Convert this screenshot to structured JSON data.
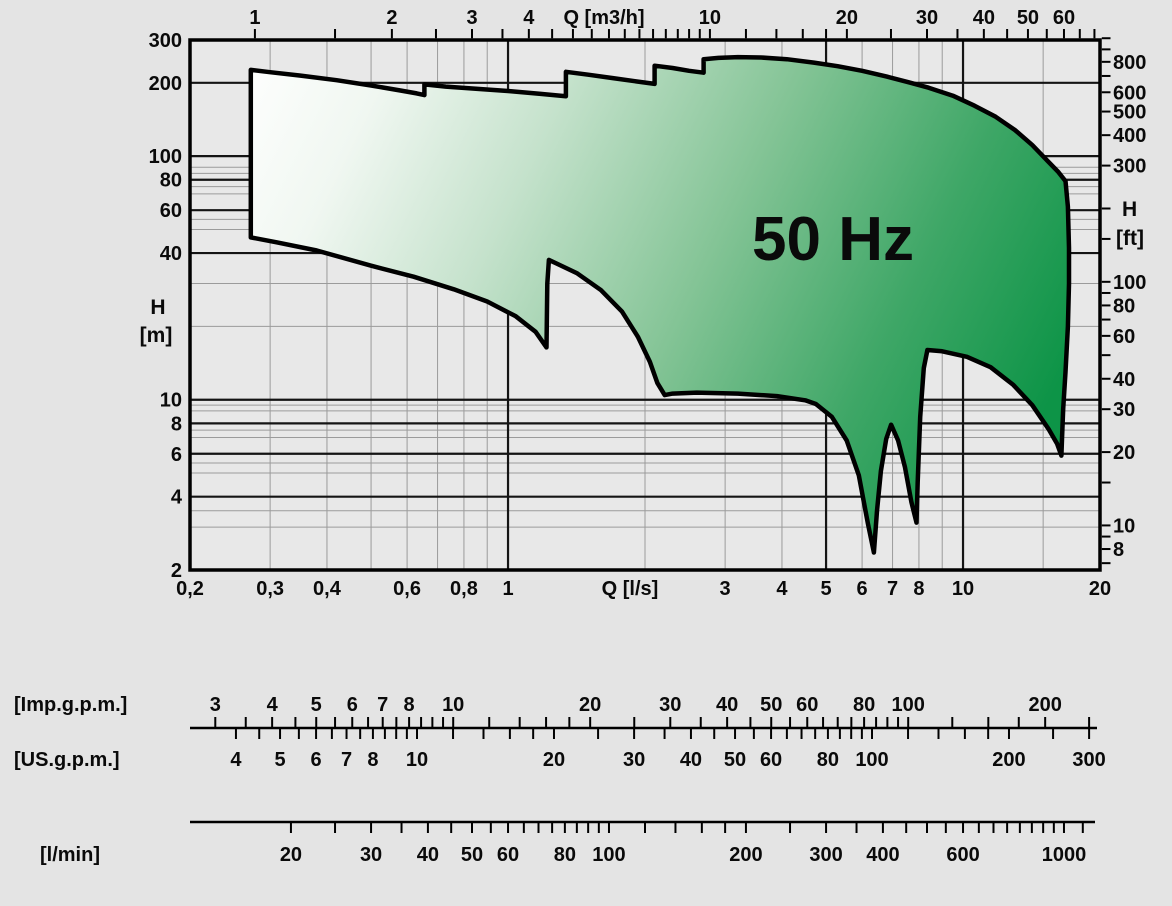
{
  "chart_data": {
    "type": "area",
    "title": "50 Hz",
    "description": "Pump family operating envelope, head H versus flow Q, log-log scales",
    "x_scale": "log",
    "y_scale": "log",
    "x_range_ls": [
      0.2,
      20
    ],
    "y_range_m": [
      2,
      300
    ],
    "colors": {
      "page_bg": "#e4e4e4",
      "plot_bg": "#e8e8e8",
      "grid_thin": "#9b9b9b",
      "grid_dark": "#141414",
      "frame": "#000000",
      "text": "#0a0a0a",
      "envelope_outline": "#000000"
    },
    "axes": {
      "top": {
        "title": "Q [m3/h]",
        "ls_per_unit": 0.2777778,
        "labeled": [
          {
            "v": 1,
            "t": "1"
          },
          {
            "v": 2,
            "t": "2"
          },
          {
            "v": 3,
            "t": "3"
          },
          {
            "v": 4,
            "t": "4"
          },
          {
            "v": 10,
            "t": "10"
          },
          {
            "v": 20,
            "t": "20"
          },
          {
            "v": 30,
            "t": "30"
          },
          {
            "v": 40,
            "t": "40"
          },
          {
            "v": 50,
            "t": "50"
          },
          {
            "v": 60,
            "t": "60"
          }
        ],
        "minor": [
          1.5,
          2.5,
          3.5,
          4.5,
          5,
          5.5,
          6,
          6.5,
          7,
          7.5,
          8,
          8.5,
          9,
          9.5,
          12,
          14,
          16,
          18,
          25,
          35,
          45,
          55,
          65,
          70
        ]
      },
      "bottom": {
        "title": "Q [l/s]",
        "labeled": [
          {
            "v": 0.2,
            "t": "0,2"
          },
          {
            "v": 0.3,
            "t": "0,3"
          },
          {
            "v": 0.4,
            "t": "0,4"
          },
          {
            "v": 0.6,
            "t": "0,6"
          },
          {
            "v": 0.8,
            "t": "0,8"
          },
          {
            "v": 1,
            "t": "1"
          },
          {
            "v": 3,
            "t": "3"
          },
          {
            "v": 4,
            "t": "4"
          },
          {
            "v": 5,
            "t": "5"
          },
          {
            "v": 6,
            "t": "6"
          },
          {
            "v": 7,
            "t": "7"
          },
          {
            "v": 8,
            "t": "8"
          },
          {
            "v": 10,
            "t": "10"
          },
          {
            "v": 20,
            "t": "20"
          }
        ]
      },
      "left": {
        "title_lines": [
          "H",
          "[m]"
        ],
        "labeled": [
          {
            "v": 300,
            "t": "300"
          },
          {
            "v": 200,
            "t": "200"
          },
          {
            "v": 100,
            "t": "100"
          },
          {
            "v": 80,
            "t": "80"
          },
          {
            "v": 60,
            "t": "60"
          },
          {
            "v": 40,
            "t": "40"
          },
          {
            "v": 10,
            "t": "10"
          },
          {
            "v": 8,
            "t": "8"
          },
          {
            "v": 6,
            "t": "6"
          },
          {
            "v": 4,
            "t": "4"
          },
          {
            "v": 2,
            "t": "2"
          }
        ]
      },
      "right": {
        "title_lines": [
          "H",
          "[ft]"
        ],
        "m_per_unit": 0.3048,
        "labeled": [
          {
            "v": 800,
            "t": "800"
          },
          {
            "v": 600,
            "t": "600"
          },
          {
            "v": 500,
            "t": "500"
          },
          {
            "v": 400,
            "t": "400"
          },
          {
            "v": 300,
            "t": "300"
          },
          {
            "v": 100,
            "t": "100"
          },
          {
            "v": 80,
            "t": "80"
          },
          {
            "v": 60,
            "t": "60"
          },
          {
            "v": 40,
            "t": "40"
          },
          {
            "v": 30,
            "t": "30"
          },
          {
            "v": 20,
            "t": "20"
          },
          {
            "v": 10,
            "t": "10"
          },
          {
            "v": 8,
            "t": "8"
          }
        ],
        "minor": [
          1000,
          900,
          700,
          200,
          150,
          90,
          70,
          50,
          15,
          9,
          7
        ]
      }
    },
    "grid": {
      "v_thin_ls": [
        0.3,
        0.4,
        0.5,
        0.6,
        0.7,
        0.8,
        0.9,
        2,
        3,
        4,
        6,
        7,
        8,
        9,
        15
      ],
      "v_dark_ls": [
        1,
        5,
        10
      ],
      "h_dark_m": [
        200,
        100,
        80,
        60,
        40,
        10,
        8,
        6,
        4
      ],
      "h_thin_m": [
        90,
        85,
        75,
        70,
        55,
        50,
        30,
        20,
        9.5,
        9,
        7.5,
        7,
        5.5,
        5,
        3.5,
        3
      ]
    },
    "envelope": {
      "label": "50 Hz",
      "gradient_stops": [
        {
          "offset": 0,
          "color": "#ffffff"
        },
        {
          "offset": 0.16,
          "color": "#f0f7f1"
        },
        {
          "offset": 0.35,
          "color": "#c5e2cc"
        },
        {
          "offset": 0.58,
          "color": "#84c496"
        },
        {
          "offset": 0.8,
          "color": "#3fa767"
        },
        {
          "offset": 1,
          "color": "#0d9447"
        }
      ],
      "points_q_h": [
        [
          0.272,
          226
        ],
        [
          0.3,
          221
        ],
        [
          0.35,
          214
        ],
        [
          0.42,
          205
        ],
        [
          0.5,
          195
        ],
        [
          0.58,
          186
        ],
        [
          0.63,
          181
        ],
        [
          0.655,
          178
        ],
        [
          0.655,
          197
        ],
        [
          0.73,
          193
        ],
        [
          0.85,
          189
        ],
        [
          1.0,
          185
        ],
        [
          1.18,
          180
        ],
        [
          1.34,
          176
        ],
        [
          1.34,
          222
        ],
        [
          1.5,
          216
        ],
        [
          1.7,
          209
        ],
        [
          1.9,
          203
        ],
        [
          2.1,
          198
        ],
        [
          2.1,
          235
        ],
        [
          2.3,
          230
        ],
        [
          2.5,
          224
        ],
        [
          2.69,
          220
        ],
        [
          2.69,
          250
        ],
        [
          2.9,
          253
        ],
        [
          3.2,
          255
        ],
        [
          3.6,
          254
        ],
        [
          4.1,
          250
        ],
        [
          4.7,
          242
        ],
        [
          5.3,
          234
        ],
        [
          6.0,
          224
        ],
        [
          6.8,
          212
        ],
        [
          7.6,
          201
        ],
        [
          8.4,
          191
        ],
        [
          9.5,
          177
        ],
        [
          10.6,
          161
        ],
        [
          11.8,
          145
        ],
        [
          13.0,
          128
        ],
        [
          14.2,
          111
        ],
        [
          15.3,
          96
        ],
        [
          16.2,
          86
        ],
        [
          16.8,
          79
        ],
        [
          17.0,
          62
        ],
        [
          17.1,
          42
        ],
        [
          17.1,
          30
        ],
        [
          17.0,
          20
        ],
        [
          16.8,
          13
        ],
        [
          16.6,
          9.2
        ],
        [
          16.5,
          6.9
        ],
        [
          16.45,
          5.9
        ],
        [
          16.1,
          6.6
        ],
        [
          15.4,
          7.6
        ],
        [
          14.2,
          9.5
        ],
        [
          12.9,
          11.5
        ],
        [
          11.5,
          13.6
        ],
        [
          10.2,
          15.0
        ],
        [
          9.0,
          15.8
        ],
        [
          8.35,
          16.0
        ],
        [
          8.2,
          13.5
        ],
        [
          8.05,
          8.5
        ],
        [
          7.95,
          4.6
        ],
        [
          7.9,
          3.13
        ],
        [
          7.7,
          3.8
        ],
        [
          7.45,
          5.3
        ],
        [
          7.2,
          6.8
        ],
        [
          6.95,
          7.9
        ],
        [
          6.78,
          6.9
        ],
        [
          6.6,
          5.1
        ],
        [
          6.47,
          3.5
        ],
        [
          6.37,
          2.36
        ],
        [
          6.18,
          3.1
        ],
        [
          5.9,
          4.9
        ],
        [
          5.55,
          6.8
        ],
        [
          5.15,
          8.5
        ],
        [
          4.75,
          9.6
        ],
        [
          4.5,
          9.95
        ],
        [
          3.9,
          10.35
        ],
        [
          3.2,
          10.6
        ],
        [
          2.6,
          10.7
        ],
        [
          2.3,
          10.6
        ],
        [
          2.21,
          10.45
        ],
        [
          2.13,
          11.7
        ],
        [
          2.05,
          14.3
        ],
        [
          1.93,
          18.1
        ],
        [
          1.78,
          23.0
        ],
        [
          1.6,
          28.2
        ],
        [
          1.42,
          33.0
        ],
        [
          1.28,
          36.2
        ],
        [
          1.23,
          37.5
        ],
        [
          1.22,
          30.0
        ],
        [
          1.215,
          16.4
        ],
        [
          1.15,
          19.0
        ],
        [
          1.04,
          22.0
        ],
        [
          0.9,
          25.3
        ],
        [
          0.76,
          28.4
        ],
        [
          0.62,
          32.0
        ],
        [
          0.5,
          35.5
        ],
        [
          0.38,
          41.0
        ],
        [
          0.31,
          44.3
        ],
        [
          0.272,
          46.4
        ]
      ]
    },
    "flow_scales": [
      {
        "id": "imp",
        "bracket_label": "[Imp.g.p.m.]",
        "ls_per_unit": 0.0757682,
        "labeled": [
          {
            "v": 3,
            "t": "3"
          },
          {
            "v": 4,
            "t": "4"
          },
          {
            "v": 5,
            "t": "5"
          },
          {
            "v": 6,
            "t": "6"
          },
          {
            "v": 7,
            "t": "7"
          },
          {
            "v": 8,
            "t": "8"
          },
          {
            "v": 10,
            "t": "10"
          },
          {
            "v": 20,
            "t": "20"
          },
          {
            "v": 30,
            "t": "30"
          },
          {
            "v": 40,
            "t": "40"
          },
          {
            "v": 50,
            "t": "50"
          },
          {
            "v": 60,
            "t": "60"
          },
          {
            "v": 80,
            "t": "80"
          },
          {
            "v": 100,
            "t": "100"
          },
          {
            "v": 200,
            "t": "200"
          }
        ],
        "minor": [
          3.5,
          4.5,
          5.5,
          6.5,
          7.5,
          8.5,
          9,
          9.5,
          12,
          14,
          16,
          18,
          25,
          35,
          45,
          55,
          65,
          70,
          75,
          85,
          90,
          95,
          125,
          150,
          175
        ]
      },
      {
        "id": "us",
        "bracket_label": "[US.g.p.m.]",
        "ls_per_unit": 0.0630902,
        "labeled": [
          {
            "v": 4,
            "t": "4"
          },
          {
            "v": 5,
            "t": "5"
          },
          {
            "v": 6,
            "t": "6"
          },
          {
            "v": 7,
            "t": "7"
          },
          {
            "v": 8,
            "t": "8"
          },
          {
            "v": 10,
            "t": "10"
          },
          {
            "v": 20,
            "t": "20"
          },
          {
            "v": 30,
            "t": "30"
          },
          {
            "v": 40,
            "t": "40"
          },
          {
            "v": 50,
            "t": "50"
          },
          {
            "v": 60,
            "t": "60"
          },
          {
            "v": 80,
            "t": "80"
          },
          {
            "v": 100,
            "t": "100"
          },
          {
            "v": 200,
            "t": "200"
          },
          {
            "v": 300,
            "t": "300"
          }
        ],
        "minor": [
          4.5,
          5.5,
          6.5,
          7.5,
          8.5,
          9,
          9.5,
          12,
          14,
          16,
          18,
          25,
          35,
          45,
          55,
          65,
          70,
          75,
          85,
          90,
          95,
          120,
          140,
          160,
          180,
          250
        ],
        "cross_ticks": [
          300
        ]
      },
      {
        "id": "lmin",
        "bracket_label": "[l/min]",
        "ls_per_unit": 0.0166667,
        "labeled": [
          {
            "v": 20,
            "t": "20"
          },
          {
            "v": 30,
            "t": "30"
          },
          {
            "v": 40,
            "t": "40"
          },
          {
            "v": 50,
            "t": "50"
          },
          {
            "v": 60,
            "t": "60"
          },
          {
            "v": 80,
            "t": "80"
          },
          {
            "v": 100,
            "t": "100"
          },
          {
            "v": 200,
            "t": "200"
          },
          {
            "v": 300,
            "t": "300"
          },
          {
            "v": 400,
            "t": "400"
          },
          {
            "v": 600,
            "t": "600"
          },
          {
            "v": 1000,
            "t": "1000"
          }
        ],
        "minor": [
          25,
          35,
          45,
          55,
          65,
          70,
          75,
          85,
          90,
          95,
          120,
          140,
          160,
          180,
          250,
          350,
          450,
          500,
          550,
          650,
          700,
          750,
          800,
          850,
          900,
          950,
          1100
        ]
      }
    ]
  }
}
